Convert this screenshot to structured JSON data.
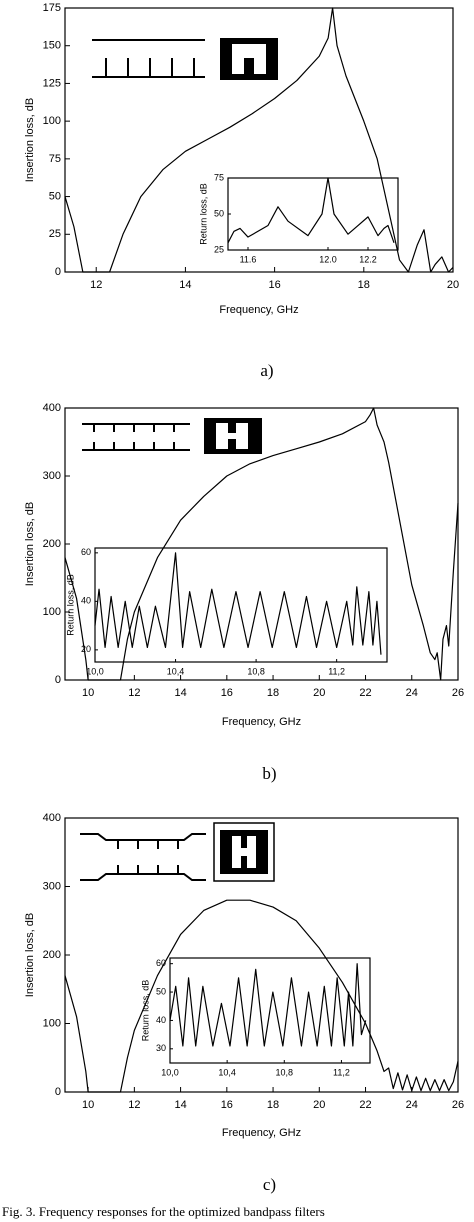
{
  "chart_data": [
    {
      "type": "line",
      "panel_label": "a)",
      "xlabel": "Frequency, GHz",
      "ylabel": "Insertion loss, dB",
      "xlim": [
        11.3,
        20
      ],
      "ylim": [
        0,
        175
      ],
      "xticks": [
        12,
        14,
        16,
        18,
        20
      ],
      "yticks": [
        0,
        25,
        50,
        75,
        100,
        125,
        150,
        175
      ],
      "series": [
        {
          "color": "#000000",
          "x": [
            11.3,
            11.5,
            11.7,
            12.3,
            12.6,
            13,
            13.5,
            14,
            14.5,
            15,
            15.5,
            16,
            16.5,
            17,
            17.2,
            17.3,
            17.4,
            17.6,
            18,
            18.3,
            18.6,
            18.8,
            19,
            19.2,
            19.35,
            19.5,
            19.6,
            19.75,
            19.9,
            20
          ],
          "values": [
            50,
            30,
            0,
            0,
            25,
            50,
            68,
            80,
            88,
            96,
            105,
            115,
            127,
            143,
            155,
            175,
            150,
            130,
            100,
            75,
            35,
            8,
            0,
            18,
            28,
            0,
            5,
            10,
            0,
            3
          ]
        }
      ]
    },
    {
      "type": "line",
      "ylabel": "Return loss, dB",
      "xlim": [
        11.5,
        12.35
      ],
      "ylim": [
        25,
        75
      ],
      "xticks": [
        11.6,
        {
          "value": 12,
          "label": "12.0"
        },
        12.2
      ],
      "yticks": [
        25,
        50,
        75
      ],
      "series": [
        {
          "color": "#000000",
          "x": [
            11.5,
            11.53,
            11.56,
            11.6,
            11.7,
            11.75,
            11.8,
            11.9,
            11.97,
            12.0,
            12.03,
            12.1,
            12.15,
            12.2,
            12.25,
            12.28,
            12.3,
            12.33
          ],
          "values": [
            30,
            38,
            40,
            34,
            42,
            55,
            45,
            35,
            50,
            75,
            50,
            36,
            42,
            48,
            35,
            40,
            42,
            30
          ]
        }
      ]
    },
    {
      "type": "line",
      "panel_label": "b)",
      "xlabel": "Frequency, GHz",
      "ylabel": "Insertion loss, dB",
      "xlim": [
        9,
        26
      ],
      "ylim": [
        0,
        400
      ],
      "xticks": [
        10,
        12,
        14,
        16,
        18,
        20,
        22,
        24,
        26
      ],
      "yticks": [
        0,
        100,
        200,
        300,
        400
      ],
      "series": [
        {
          "color": "#000000",
          "x": [
            9,
            9.5,
            9.9,
            10,
            11.4,
            11.7,
            12,
            13,
            14,
            15,
            16,
            17,
            18,
            19,
            20,
            21,
            22,
            22.2,
            22.35,
            22.5,
            22.8,
            23,
            23.5,
            24,
            24.5,
            24.8,
            25,
            25.1,
            25.25,
            25.35,
            25.5,
            25.6,
            25.8,
            26
          ],
          "values": [
            180,
            120,
            30,
            0,
            0,
            60,
            100,
            180,
            235,
            270,
            300,
            318,
            330,
            340,
            350,
            362,
            380,
            390,
            400,
            375,
            350,
            320,
            230,
            140,
            80,
            40,
            30,
            40,
            0,
            60,
            80,
            50,
            160,
            260
          ]
        }
      ]
    },
    {
      "type": "line",
      "ylabel": "Return loss, dB",
      "xlim": [
        10,
        11.45
      ],
      "ylim": [
        15,
        62
      ],
      "xticks": [
        {
          "value": 10,
          "label": "10,0"
        },
        {
          "value": 10.4,
          "label": "10,4"
        },
        {
          "value": 10.8,
          "label": "10,8"
        },
        {
          "value": 11.2,
          "label": "11,2"
        }
      ],
      "yticks": [
        20,
        40,
        60
      ],
      "series": [
        {
          "color": "#000000",
          "x": [
            10.0,
            10.02,
            10.05,
            10.08,
            10.115,
            10.15,
            10.185,
            10.22,
            10.26,
            10.3,
            10.35,
            10.4,
            10.435,
            10.47,
            10.525,
            10.58,
            10.64,
            10.7,
            10.76,
            10.82,
            10.88,
            10.94,
            11.0,
            11.05,
            11.1,
            11.15,
            11.2,
            11.25,
            11.28,
            11.3,
            11.33,
            11.36,
            11.38,
            11.4,
            11.42
          ],
          "values": [
            30,
            45,
            21,
            42,
            21,
            40,
            21,
            38,
            21,
            38,
            21,
            60,
            21,
            44,
            21,
            45,
            21,
            44,
            21,
            44,
            21,
            44,
            21,
            42,
            21,
            40,
            21,
            40,
            22,
            46,
            22,
            44,
            22,
            40,
            18
          ]
        }
      ]
    },
    {
      "type": "line",
      "panel_label": "c)",
      "xlabel": "Frequency, GHz",
      "ylabel": "Insertion loss, dB",
      "xlim": [
        9,
        26
      ],
      "ylim": [
        0,
        400
      ],
      "xticks": [
        10,
        12,
        14,
        16,
        18,
        20,
        22,
        24,
        26
      ],
      "yticks": [
        0,
        100,
        200,
        300,
        400
      ],
      "series": [
        {
          "color": "#000000",
          "x": [
            9,
            9.5,
            9.9,
            10,
            11.4,
            11.7,
            12,
            13,
            14,
            15,
            16,
            17,
            18,
            19,
            20,
            21,
            22,
            22.5,
            22.8,
            23,
            23.2,
            23.4,
            23.6,
            23.8,
            24,
            24.2,
            24.4,
            24.6,
            24.8,
            25,
            25.2,
            25.4,
            25.6,
            25.8,
            26
          ],
          "values": [
            170,
            110,
            30,
            0,
            0,
            50,
            90,
            170,
            230,
            265,
            280,
            280,
            270,
            250,
            210,
            160,
            100,
            60,
            30,
            35,
            5,
            28,
            3,
            25,
            2,
            22,
            2,
            20,
            2,
            18,
            2,
            18,
            2,
            15,
            45
          ]
        }
      ]
    },
    {
      "type": "line",
      "ylabel": "Return loss, dB",
      "xlim": [
        10,
        11.4
      ],
      "ylim": [
        25,
        62
      ],
      "xticks": [
        {
          "value": 10,
          "label": "10,0"
        },
        {
          "value": 10.4,
          "label": "10,4"
        },
        {
          "value": 10.8,
          "label": "10,8"
        },
        {
          "value": 11.2,
          "label": "11,2"
        }
      ],
      "yticks": [
        30,
        40,
        50,
        60
      ],
      "series": [
        {
          "color": "#000000",
          "x": [
            10.0,
            10.04,
            10.09,
            10.13,
            10.18,
            10.23,
            10.3,
            10.36,
            10.42,
            10.48,
            10.54,
            10.6,
            10.66,
            10.72,
            10.79,
            10.85,
            10.92,
            10.97,
            11.03,
            11.08,
            11.13,
            11.17,
            11.22,
            11.25,
            11.28,
            11.31,
            11.34,
            11.37
          ],
          "values": [
            40,
            52,
            31,
            55,
            31,
            52,
            31,
            46,
            31,
            55,
            31,
            58,
            31,
            50,
            31,
            55,
            31,
            50,
            31,
            52,
            31,
            55,
            31,
            50,
            31,
            60,
            35,
            40
          ]
        }
      ]
    }
  ],
  "caption": "Fig. 3. Frequency responses for the optimized bandpass filters"
}
